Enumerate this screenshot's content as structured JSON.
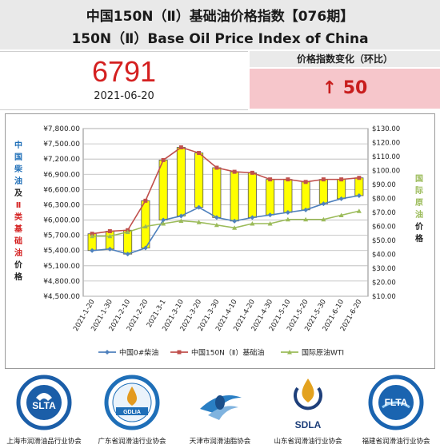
{
  "header": {
    "title_cn": "中国150N（Ⅱ）基础油价格指数【076期】",
    "title_en": "150N（Ⅱ）Base Oil Price Index of China"
  },
  "index": {
    "value": "6791",
    "date": "2021-06-20"
  },
  "change": {
    "title": "价格指数变化（环比）",
    "arrow": "↑",
    "value": "50"
  },
  "chart_data": {
    "type": "line",
    "categories": [
      "2021-1-20",
      "2021-1-30",
      "2021-2-10",
      "2021-2-20",
      "2021-3-1",
      "2021-3-10",
      "2021-3-20",
      "2021-3-30",
      "2021-4-10",
      "2021-4-20",
      "2021-4-30",
      "2021-5-10",
      "2021-5-20",
      "2021-5-30",
      "2021-6-10",
      "2021-6-20"
    ],
    "series": [
      {
        "name": "中国0#柴油",
        "axis": "left",
        "color": "#4f81bd",
        "values": [
          5400,
          5430,
          5330,
          5450,
          6000,
          6080,
          6250,
          6050,
          5980,
          6050,
          6100,
          6150,
          6200,
          6320,
          6420,
          6480
        ]
      },
      {
        "name": "中国150N（Ⅱ）基础油",
        "axis": "left",
        "color": "#c0504d",
        "values": [
          5730,
          5780,
          5800,
          6380,
          7180,
          7430,
          7320,
          7030,
          6950,
          6930,
          6800,
          6800,
          6750,
          6800,
          6800,
          6830
        ]
      },
      {
        "name": "国际原油WTI",
        "axis": "right",
        "color": "#9bbb59",
        "values": [
          53,
          53,
          56,
          60,
          62,
          64,
          63,
          61,
          59,
          62,
          62,
          65,
          65,
          65,
          68,
          71
        ]
      }
    ],
    "bars": "yellow up-down bars between 中国0#柴油 and 中国150N（Ⅱ）基础油",
    "left_axis": {
      "label_chars": [
        "中",
        "国",
        "柴",
        "油",
        "及",
        "Ⅱ",
        "类",
        "基",
        "础",
        "油",
        "价",
        "格"
      ],
      "ylim": [
        4500,
        7800
      ],
      "ticks": [
        "¥4,500.00",
        "¥4,800.00",
        "¥5,100.00",
        "¥5,400.00",
        "¥5,700.00",
        "¥6,000.00",
        "¥6,300.00",
        "¥6,600.00",
        "¥6,900.00",
        "¥7,200.00",
        "¥7,500.00",
        "¥7,800.00"
      ]
    },
    "right_axis": {
      "label_chars": [
        "国",
        "际",
        "原",
        "油",
        "价",
        "格"
      ],
      "ylim": [
        10,
        130
      ],
      "ticks": [
        "$10.00",
        "$20.00",
        "$30.00",
        "$40.00",
        "$50.00",
        "$60.00",
        "$70.00",
        "$80.00",
        "$90.00",
        "$100.00",
        "$110.00",
        "$120.00",
        "$130.00"
      ]
    },
    "grid": true,
    "legend": "bottom"
  },
  "footer": {
    "logos": [
      {
        "name": "上海市润滑油品行业协会",
        "abbr": "SLTA",
        "icon": "shanghai-association-logo",
        "color": "#1b5ea8"
      },
      {
        "name": "广东省润滑油行业协会",
        "abbr": "GDLIA",
        "icon": "guangdong-association-logo",
        "color": "#1f6fb8"
      },
      {
        "name": "天津市润滑油脂协会",
        "abbr": "",
        "icon": "tianjin-association-logo",
        "color": "#2a7fc4"
      },
      {
        "name": "山东省润滑油行业协会",
        "abbr": "SDLA",
        "icon": "shandong-association-logo",
        "color": "#1e3f7a"
      },
      {
        "name": "福建省润滑油行业协会",
        "abbr": "FLTA",
        "icon": "fujian-association-logo",
        "color": "#1a64b0"
      }
    ]
  }
}
